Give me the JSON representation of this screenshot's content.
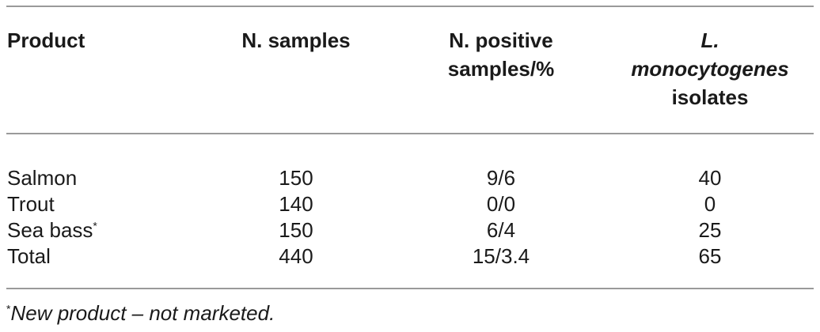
{
  "table": {
    "headers": {
      "product": "Product",
      "n_samples": "N. samples",
      "n_positive_line1": "N. positive",
      "n_positive_line2": "samples/%",
      "isolates_line1": "L.",
      "isolates_line2": "monocytogenes",
      "isolates_line3": "isolates"
    },
    "rows": [
      {
        "product": "Salmon",
        "marker": "",
        "n_samples": "150",
        "n_positive": "9/6",
        "isolates": "40"
      },
      {
        "product": "Trout",
        "marker": "",
        "n_samples": "140",
        "n_positive": "0/0",
        "isolates": "0"
      },
      {
        "product": "Sea bass",
        "marker": "*",
        "n_samples": "150",
        "n_positive": "6/4",
        "isolates": "25"
      },
      {
        "product": "Total",
        "marker": "",
        "n_samples": "440",
        "n_positive": "15/3.4",
        "isolates": "65"
      }
    ]
  },
  "footnote": {
    "marker": "*",
    "text": "New product – not marketed."
  }
}
